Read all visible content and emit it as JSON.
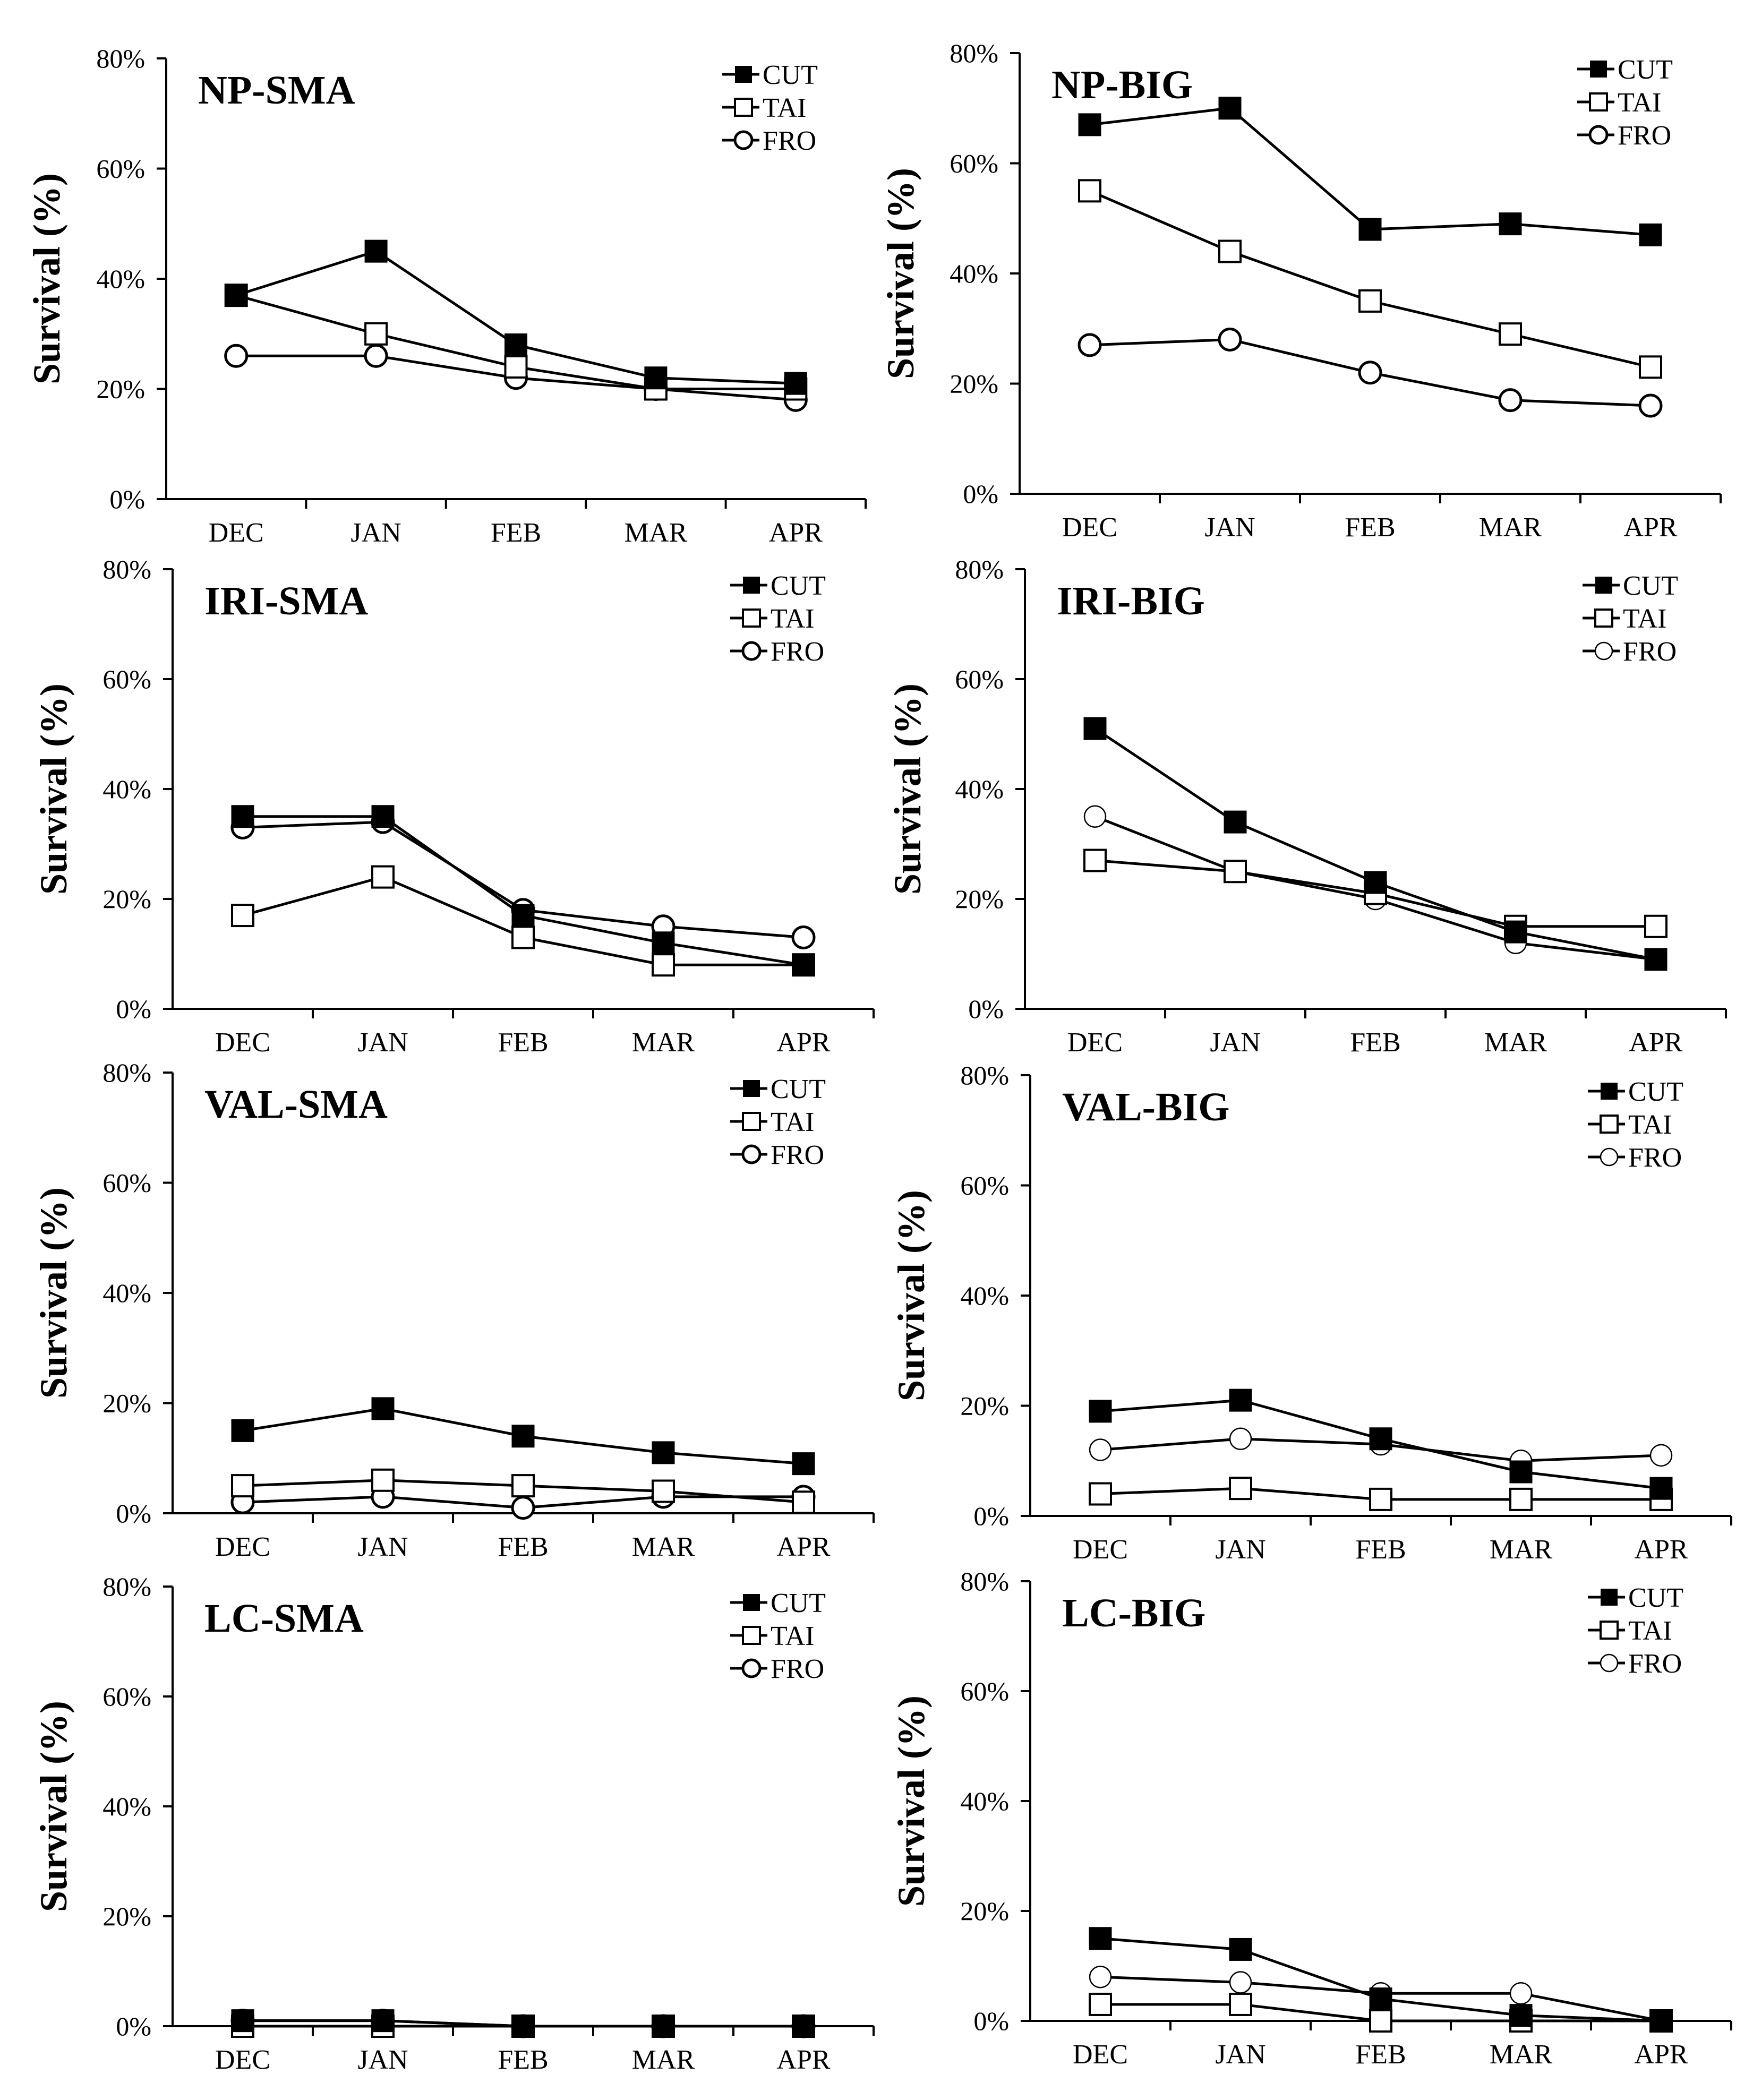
{
  "figure": {
    "y_axis_label": "Survival (%)"
  },
  "chart_data": [
    {
      "type": "line",
      "title": "NP-SMA",
      "categories": [
        "DEC",
        "JAN",
        "FEB",
        "MAR",
        "APR"
      ],
      "ylabel": "Survival (%)",
      "ylim": [
        0,
        80
      ],
      "yticks": [
        "0%",
        "20%",
        "40%",
        "60%",
        "80%"
      ],
      "legend": "top-right",
      "series": [
        {
          "name": "CUT",
          "marker": "filled-square",
          "values": [
            37,
            45,
            28,
            22,
            21
          ]
        },
        {
          "name": "TAI",
          "marker": "open-square",
          "values": [
            37,
            30,
            24,
            20,
            20
          ]
        },
        {
          "name": "FRO",
          "marker": "open-circle",
          "values": [
            26,
            26,
            22,
            20,
            18
          ]
        }
      ]
    },
    {
      "type": "line",
      "title": "NP-BIG",
      "categories": [
        "DEC",
        "JAN",
        "FEB",
        "MAR",
        "APR"
      ],
      "ylabel": "Survival (%)",
      "ylim": [
        0,
        80
      ],
      "yticks": [
        "0%",
        "20%",
        "40%",
        "60%",
        "80%"
      ],
      "legend": "top-right",
      "series": [
        {
          "name": "CUT",
          "marker": "filled-square",
          "values": [
            67,
            70,
            48,
            49,
            47
          ]
        },
        {
          "name": "TAI",
          "marker": "open-square",
          "values": [
            55,
            44,
            35,
            29,
            23
          ]
        },
        {
          "name": "FRO",
          "marker": "open-circle",
          "values": [
            27,
            28,
            22,
            17,
            16
          ]
        }
      ]
    },
    {
      "type": "line",
      "title": "IRI-SMA",
      "categories": [
        "DEC",
        "JAN",
        "FEB",
        "MAR",
        "APR"
      ],
      "ylabel": "Survival (%)",
      "ylim": [
        0,
        80
      ],
      "yticks": [
        "0%",
        "20%",
        "40%",
        "60%",
        "80%"
      ],
      "legend": "top-right",
      "series": [
        {
          "name": "CUT",
          "marker": "filled-square",
          "values": [
            35,
            35,
            17,
            12,
            8
          ]
        },
        {
          "name": "TAI",
          "marker": "open-square",
          "values": [
            17,
            24,
            13,
            8,
            8
          ]
        },
        {
          "name": "FRO",
          "marker": "open-circle",
          "values": [
            33,
            34,
            18,
            15,
            13
          ]
        }
      ]
    },
    {
      "type": "line",
      "title": "IRI-BIG",
      "categories": [
        "DEC",
        "JAN",
        "FEB",
        "MAR",
        "APR"
      ],
      "ylabel": "Survival (%)",
      "ylim": [
        0,
        80
      ],
      "yticks": [
        "0%",
        "20%",
        "40%",
        "60%",
        "80%"
      ],
      "legend": "top-right",
      "series": [
        {
          "name": "CUT",
          "marker": "filled-square",
          "values": [
            51,
            34,
            23,
            14,
            9
          ]
        },
        {
          "name": "TAI",
          "marker": "open-square",
          "values": [
            27,
            25,
            21,
            15,
            15
          ]
        },
        {
          "name": "FRO",
          "marker": "open-circle-thin",
          "values": [
            35,
            25,
            20,
            12,
            9
          ]
        }
      ]
    },
    {
      "type": "line",
      "title": "VAL-SMA",
      "categories": [
        "DEC",
        "JAN",
        "FEB",
        "MAR",
        "APR"
      ],
      "ylabel": "Survival (%)",
      "ylim": [
        0,
        80
      ],
      "yticks": [
        "0%",
        "20%",
        "40%",
        "60%",
        "80%"
      ],
      "legend": "top-right",
      "series": [
        {
          "name": "CUT",
          "marker": "filled-square",
          "values": [
            15,
            19,
            14,
            11,
            9
          ]
        },
        {
          "name": "TAI",
          "marker": "open-square",
          "values": [
            5,
            6,
            5,
            4,
            2
          ]
        },
        {
          "name": "FRO",
          "marker": "open-circle",
          "values": [
            2,
            3,
            1,
            3,
            3
          ]
        }
      ]
    },
    {
      "type": "line",
      "title": "VAL-BIG",
      "categories": [
        "DEC",
        "JAN",
        "FEB",
        "MAR",
        "APR"
      ],
      "ylabel": "Survival (%)",
      "ylim": [
        0,
        80
      ],
      "yticks": [
        "0%",
        "20%",
        "40%",
        "60%",
        "80%"
      ],
      "legend": "top-right",
      "series": [
        {
          "name": "CUT",
          "marker": "filled-square",
          "values": [
            19,
            21,
            14,
            8,
            5
          ]
        },
        {
          "name": "TAI",
          "marker": "open-square",
          "values": [
            4,
            5,
            3,
            3,
            3
          ]
        },
        {
          "name": "FRO",
          "marker": "open-circle-thin",
          "values": [
            12,
            14,
            13,
            10,
            11
          ]
        }
      ]
    },
    {
      "type": "line",
      "title": "LC-SMA",
      "categories": [
        "DEC",
        "JAN",
        "FEB",
        "MAR",
        "APR"
      ],
      "ylabel": "Survival (%)",
      "ylim": [
        0,
        80
      ],
      "yticks": [
        "0%",
        "20%",
        "40%",
        "60%",
        "80%"
      ],
      "legend": "top-right",
      "series": [
        {
          "name": "CUT",
          "marker": "filled-square",
          "values": [
            1,
            1,
            0,
            0,
            0
          ]
        },
        {
          "name": "TAI",
          "marker": "open-square",
          "values": [
            0,
            0,
            0,
            0,
            0
          ]
        },
        {
          "name": "FRO",
          "marker": "open-circle",
          "values": [
            1,
            1,
            0,
            0,
            0
          ]
        }
      ]
    },
    {
      "type": "line",
      "title": "LC-BIG",
      "categories": [
        "DEC",
        "JAN",
        "FEB",
        "MAR",
        "APR"
      ],
      "ylabel": "Survival (%)",
      "ylim": [
        0,
        80
      ],
      "yticks": [
        "0%",
        "20%",
        "40%",
        "60%",
        "80%"
      ],
      "legend": "top-right",
      "series": [
        {
          "name": "CUT",
          "marker": "filled-square",
          "values": [
            15,
            13,
            4,
            1,
            0
          ]
        },
        {
          "name": "TAI",
          "marker": "open-square",
          "values": [
            3,
            3,
            0,
            0,
            0
          ]
        },
        {
          "name": "FRO",
          "marker": "open-circle-thin",
          "values": [
            8,
            7,
            5,
            5,
            0
          ]
        }
      ]
    }
  ]
}
